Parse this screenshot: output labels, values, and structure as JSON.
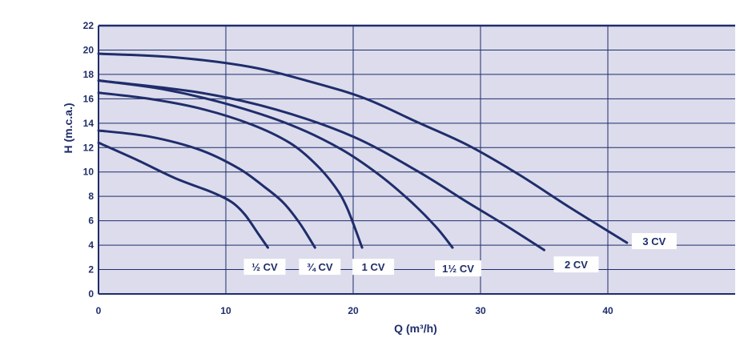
{
  "chart_data": {
    "type": "line",
    "xlabel": "Q (m³/h)",
    "ylabel": "H (m.c.a.)",
    "xlim": [
      0,
      50
    ],
    "ylim": [
      0,
      22
    ],
    "x_ticks": [
      "0",
      "10",
      "20",
      "30",
      "40"
    ],
    "y_ticks": [
      "0",
      "2",
      "4",
      "6",
      "8",
      "10",
      "12",
      "14",
      "16",
      "18",
      "20",
      "22"
    ],
    "grid": true,
    "colors": {
      "background": "#dcdcec",
      "line": "#1f2d6b",
      "grid": "#1f2d6b"
    },
    "series": [
      {
        "name": "½ CV",
        "x": [
          0,
          3,
          6,
          9,
          10.5,
          11.5,
          12.5,
          13.3
        ],
        "y": [
          12.4,
          11,
          9.5,
          8.3,
          7.5,
          6.5,
          5,
          3.8
        ]
      },
      {
        "name": "¾ CV",
        "x": [
          0,
          4,
          8,
          11,
          13,
          14.5,
          15.8,
          17
        ],
        "y": [
          13.4,
          12.9,
          11.8,
          10.3,
          8.8,
          7.5,
          5.8,
          3.8
        ]
      },
      {
        "name": "1 CV",
        "x": [
          0,
          4,
          8,
          12,
          15,
          17,
          18.5,
          19.5,
          20.7
        ],
        "y": [
          16.5,
          16,
          15.2,
          13.9,
          12.4,
          10.7,
          8.9,
          7.1,
          3.8
        ]
      },
      {
        "name": "1½ CV",
        "x": [
          0,
          5,
          10,
          15,
          19,
          22,
          24.5,
          26.5,
          27.8
        ],
        "y": [
          17.5,
          16.8,
          15.6,
          13.9,
          11.9,
          9.8,
          7.6,
          5.5,
          3.8
        ]
      },
      {
        "name": "2 CV",
        "x": [
          0,
          8,
          14,
          20,
          25,
          29,
          32,
          35
        ],
        "y": [
          17.5,
          16.5,
          15.1,
          12.9,
          10.1,
          7.5,
          5.6,
          3.6
        ]
      },
      {
        "name": "3 CV",
        "x": [
          0,
          6,
          12,
          17,
          21,
          25,
          29,
          33,
          37,
          41.5
        ],
        "y": [
          19.7,
          19.4,
          18.6,
          17.3,
          16,
          14.1,
          12.2,
          9.8,
          7.1,
          4.2
        ]
      }
    ]
  }
}
